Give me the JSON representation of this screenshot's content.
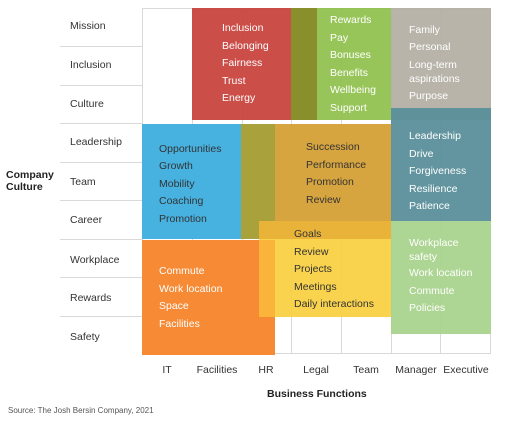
{
  "rows": [
    "Mission",
    "Inclusion",
    "Culture",
    "Leadership",
    "Team",
    "Career",
    "Workplace",
    "Rewards",
    "Safety"
  ],
  "columns": [
    "IT",
    "Facilities",
    "HR",
    "Legal",
    "Team",
    "Manager",
    "Executive"
  ],
  "y_axis_title": [
    "Company",
    "Culture"
  ],
  "x_axis_title": "Business Functions",
  "source": "Source: The Josh Bersin Company, 2021",
  "blocks": {
    "red": {
      "color": "#c8453f",
      "items": [
        "Inclusion",
        "Belonging",
        "Fairness",
        "Trust",
        "Energy"
      ]
    },
    "green": {
      "color": "#8fc04b",
      "items": [
        "Rewards",
        "Pay",
        "Bonuses",
        "Benefits",
        "Wellbeing",
        "Support"
      ]
    },
    "gray": {
      "color": "#b5b0a5",
      "items": [
        "Family",
        "Personal",
        "Long-term aspirations",
        "Purpose"
      ]
    },
    "blue": {
      "color": "#47b2e0",
      "items": [
        "Opportunities",
        "Growth",
        "Mobility",
        "Coaching",
        "Promotion"
      ]
    },
    "mustard": {
      "color": "#d6a23a",
      "items": [
        "Succession",
        "Performance",
        "Promotion",
        "Review"
      ]
    },
    "teal": {
      "color": "#5a8f9a",
      "items": [
        "Leadership",
        "Drive",
        "Forgiveness",
        "Resilience",
        "Patience"
      ]
    },
    "orange": {
      "color": "#f68a35",
      "items": [
        "Commute",
        "Work location",
        "Space",
        "Facilities"
      ]
    },
    "yellow": {
      "color": "#f9cf3e",
      "items": [
        "Goals",
        "Review",
        "Projects",
        "Meetings",
        "Daily interactions"
      ]
    },
    "lightgreen": {
      "color": "#a9d38d",
      "items": [
        "Workplace safety",
        "Work location",
        "Commute",
        "Policies"
      ]
    }
  }
}
